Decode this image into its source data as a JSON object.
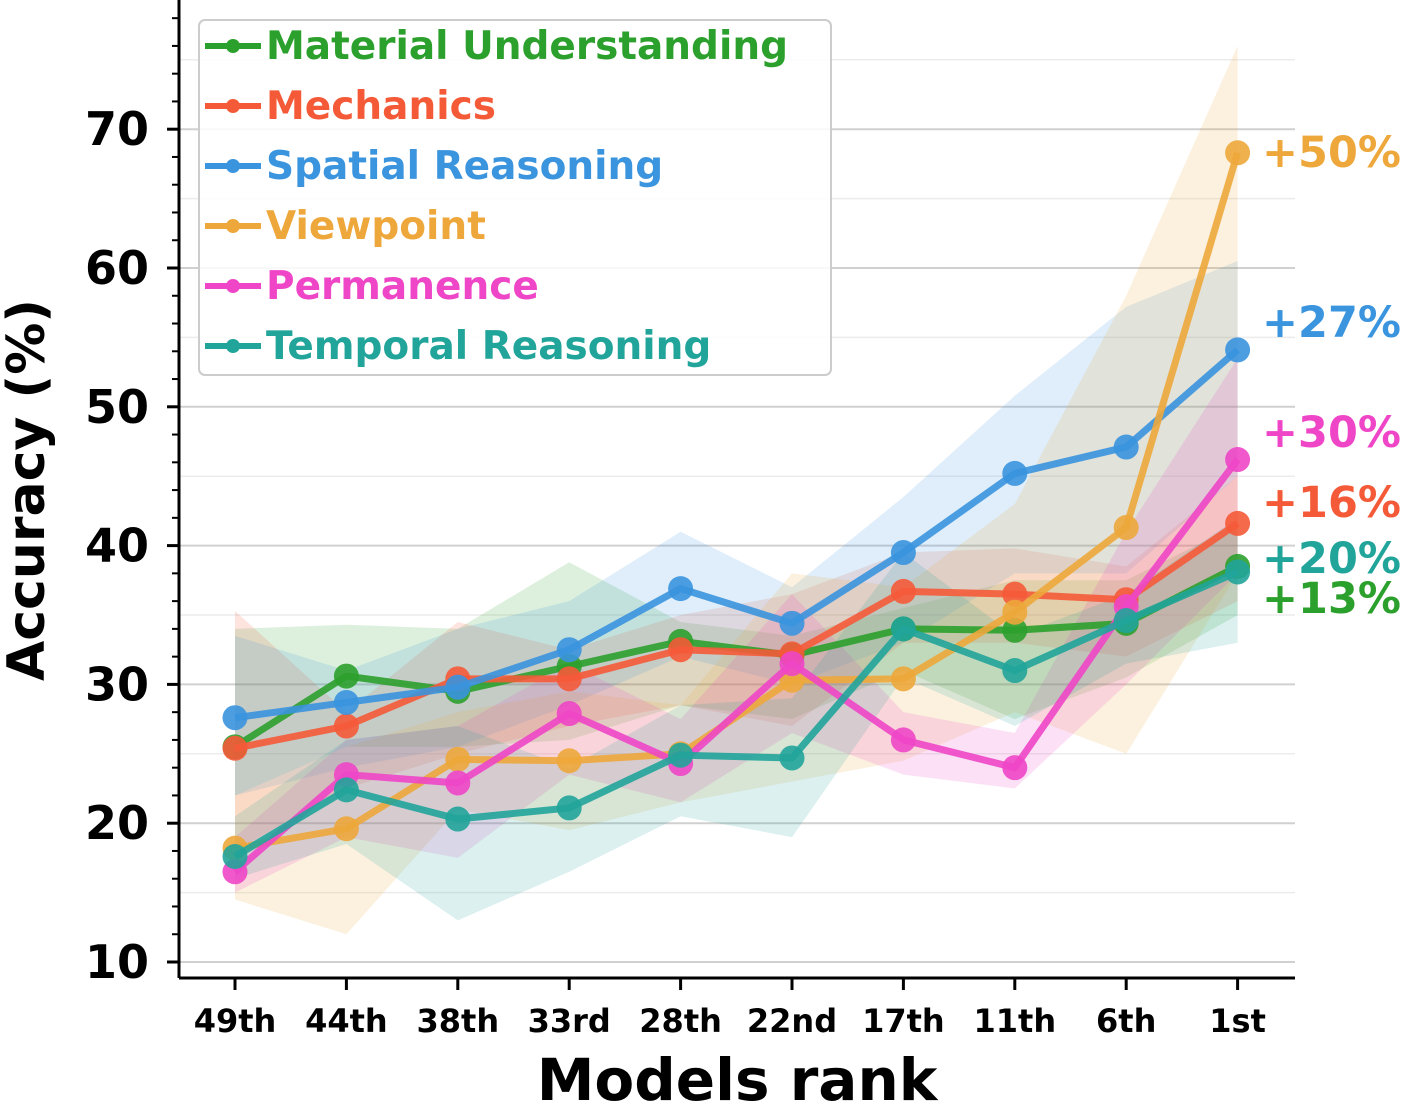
{
  "chart_data": {
    "type": "line",
    "title": "",
    "xlabel": "Models rank",
    "ylabel": "Accuracy (%)",
    "categories": [
      "49th",
      "44th",
      "38th",
      "33rd",
      "28th",
      "22nd",
      "17th",
      "11th",
      "6th",
      "1st"
    ],
    "ylim": [
      9,
      80
    ],
    "yticks": [
      10,
      20,
      30,
      40,
      50,
      60,
      70
    ],
    "grid": true,
    "legend_position": "top-left",
    "series": [
      {
        "name": "Material Understanding",
        "color": "#2ca02c",
        "values": [
          25.5,
          30.6,
          29.5,
          31.3,
          33.1,
          32.1,
          34.0,
          33.9,
          34.4,
          38.5
        ],
        "lower": [
          22.0,
          25.5,
          25.5,
          26.0,
          28.5,
          27.5,
          31.0,
          27.5,
          30.5,
          35.0
        ],
        "upper": [
          34.0,
          34.3,
          34.0,
          38.8,
          34.5,
          33.5,
          35.5,
          37.5,
          37.5,
          41.5
        ],
        "annotation": "+13%"
      },
      {
        "name": "Mechanics",
        "color": "#f55a38",
        "values": [
          25.4,
          27.0,
          30.4,
          30.4,
          32.5,
          32.2,
          36.7,
          36.5,
          36.1,
          41.6
        ],
        "lower": [
          18.0,
          22.5,
          25.0,
          27.0,
          28.5,
          27.0,
          33.0,
          33.0,
          32.0,
          36.0
        ],
        "upper": [
          35.3,
          28.0,
          34.5,
          32.5,
          35.0,
          36.5,
          39.5,
          39.8,
          38.5,
          45.0
        ],
        "annotation": "+16%"
      },
      {
        "name": "Spatial Reasoning",
        "color": "#3a94de",
        "values": [
          27.6,
          28.7,
          29.8,
          32.5,
          36.9,
          34.4,
          39.5,
          45.2,
          47.1,
          54.1
        ],
        "lower": [
          22.0,
          24.0,
          25.5,
          28.5,
          32.0,
          30.0,
          33.0,
          38.0,
          38.0,
          45.0
        ],
        "upper": [
          33.5,
          31.0,
          34.0,
          36.0,
          41.0,
          37.0,
          43.5,
          50.8,
          57.2,
          60.5
        ],
        "annotation": "+27%"
      },
      {
        "name": "Viewpoint",
        "color": "#eda73b",
        "values": [
          18.2,
          19.6,
          24.6,
          24.5,
          25.0,
          30.3,
          30.4,
          35.2,
          41.3,
          68.3
        ],
        "lower": [
          14.5,
          12.0,
          21.0,
          19.5,
          21.5,
          23.0,
          24.5,
          28.0,
          25.0,
          38.0
        ],
        "upper": [
          22.0,
          25.5,
          28.0,
          29.5,
          28.5,
          38.0,
          37.0,
          43.0,
          58.0,
          76.0
        ],
        "annotation": "+50%"
      },
      {
        "name": "Permanence",
        "color": "#ee46c7",
        "values": [
          16.5,
          23.5,
          22.9,
          27.9,
          24.3,
          31.5,
          26.0,
          24.0,
          35.6,
          46.2
        ],
        "lower": [
          15.0,
          19.0,
          17.5,
          23.5,
          21.5,
          26.5,
          23.5,
          22.5,
          30.0,
          38.0
        ],
        "upper": [
          19.0,
          26.0,
          27.0,
          31.5,
          27.5,
          36.5,
          28.0,
          26.5,
          41.0,
          53.5
        ],
        "annotation": "+30%"
      },
      {
        "name": "Temporal Reasoning",
        "color": "#21a49a",
        "values": [
          17.6,
          22.4,
          20.3,
          21.1,
          24.9,
          24.7,
          34.0,
          31.0,
          34.6,
          38.1
        ],
        "lower": [
          16.0,
          18.5,
          13.0,
          16.5,
          20.5,
          19.0,
          30.5,
          27.0,
          31.5,
          33.0
        ],
        "upper": [
          20.5,
          26.0,
          27.0,
          24.0,
          28.5,
          29.0,
          39.5,
          33.5,
          36.5,
          42.0
        ],
        "annotation": "+20%"
      }
    ]
  }
}
